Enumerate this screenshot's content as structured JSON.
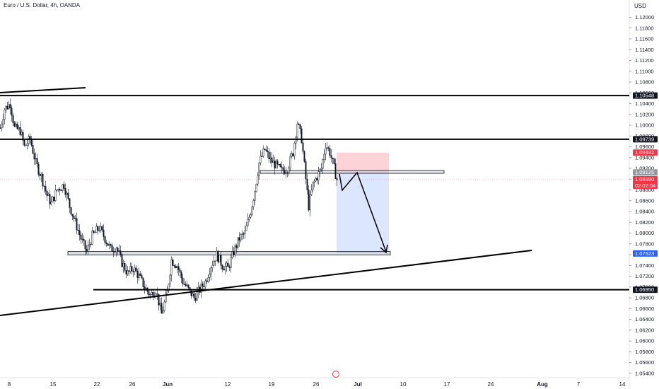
{
  "header": {
    "title": "Euro / U.S. Dollar, 4h, OANDA",
    "currency": "USD"
  },
  "chart_data": {
    "type": "candlestick",
    "symbol": "Euro / U.S. Dollar",
    "interval": "4h",
    "source": "OANDA",
    "y_axis": {
      "ylim": [
        1.0532,
        1.1232
      ],
      "ticks": [
        "1.12000",
        "1.11800",
        "1.11600",
        "1.11400",
        "1.11200",
        "1.11000",
        "1.10800",
        "1.10600",
        "1.10400",
        "1.10200",
        "1.10000",
        "1.09800",
        "1.09600",
        "1.09400",
        "1.09200",
        "1.09000",
        "1.08800",
        "1.08600",
        "1.08400",
        "1.08200",
        "1.08000",
        "1.07800",
        "1.07600",
        "1.07400",
        "1.07200",
        "1.07000",
        "1.06800",
        "1.06600",
        "1.06400",
        "1.06200",
        "1.06000",
        "1.05800",
        "1.05600",
        "1.05400"
      ]
    },
    "x_axis": {
      "ticks": [
        "8",
        "15",
        "22",
        "26",
        "Jun",
        "12",
        "19",
        "26",
        "Jul",
        "10",
        "17",
        "24",
        "Aug",
        "7",
        "14"
      ],
      "bold": [
        "Jun",
        "Jul",
        "Aug"
      ]
    },
    "price_badges": [
      {
        "value": "1.10548",
        "price": 1.10548,
        "bg": "#131722",
        "fg": "#ffffff"
      },
      {
        "value": "1.09739",
        "price": 1.09739,
        "bg": "#131722",
        "fg": "#ffffff"
      },
      {
        "value": "1.09492",
        "price": 1.09492,
        "bg": "#f23645",
        "fg": "#ffffff"
      },
      {
        "value": "1.09125",
        "price": 1.09125,
        "bg": "#9598a1",
        "fg": "#ffffff"
      },
      {
        "value": "1.08990",
        "price": 1.0899,
        "bg": "#f23645",
        "fg": "#ffffff",
        "sub": "02:02:04"
      },
      {
        "value": "1.07623",
        "price": 1.07623,
        "bg": "#2962ff",
        "fg": "#ffffff"
      },
      {
        "value": "1.06950",
        "price": 1.0695,
        "bg": "#131722",
        "fg": "#ffffff"
      }
    ],
    "horizontal_levels": [
      1.10548,
      1.09739,
      1.0695
    ],
    "zones": [
      {
        "name": "resistance-zone",
        "price_top": 1.0915,
        "price_bottom": 1.091
      },
      {
        "name": "support-zone",
        "price_top": 1.0765,
        "price_bottom": 1.0759
      }
    ],
    "position": {
      "type": "short",
      "stop": 1.09492,
      "entry": 1.09125,
      "target": 1.07623
    },
    "candles_keypoints": [
      {
        "x": 0,
        "price": 1.0995
      },
      {
        "x": 6,
        "price": 1.103
      },
      {
        "x": 14,
        "price": 1.104
      },
      {
        "x": 20,
        "price": 1.0995
      },
      {
        "x": 28,
        "price": 1.099
      },
      {
        "x": 34,
        "price": 1.096
      },
      {
        "x": 42,
        "price": 1.0975
      },
      {
        "x": 50,
        "price": 1.093
      },
      {
        "x": 58,
        "price": 1.0905
      },
      {
        "x": 66,
        "price": 1.087
      },
      {
        "x": 72,
        "price": 1.0855
      },
      {
        "x": 80,
        "price": 1.088
      },
      {
        "x": 90,
        "price": 1.089
      },
      {
        "x": 98,
        "price": 1.085
      },
      {
        "x": 106,
        "price": 1.082
      },
      {
        "x": 114,
        "price": 1.079
      },
      {
        "x": 122,
        "price": 1.0765
      },
      {
        "x": 130,
        "price": 1.0795
      },
      {
        "x": 140,
        "price": 1.081
      },
      {
        "x": 148,
        "price": 1.079
      },
      {
        "x": 156,
        "price": 1.077
      },
      {
        "x": 164,
        "price": 1.0775
      },
      {
        "x": 172,
        "price": 1.0745
      },
      {
        "x": 180,
        "price": 1.0725
      },
      {
        "x": 188,
        "price": 1.0735
      },
      {
        "x": 196,
        "price": 1.072
      },
      {
        "x": 204,
        "price": 1.07
      },
      {
        "x": 212,
        "price": 1.0685
      },
      {
        "x": 220,
        "price": 1.0695
      },
      {
        "x": 228,
        "price": 1.065
      },
      {
        "x": 236,
        "price": 1.069
      },
      {
        "x": 242,
        "price": 1.075
      },
      {
        "x": 250,
        "price": 1.074
      },
      {
        "x": 258,
        "price": 1.071
      },
      {
        "x": 266,
        "price": 1.0695
      },
      {
        "x": 274,
        "price": 1.068
      },
      {
        "x": 282,
        "price": 1.0695
      },
      {
        "x": 290,
        "price": 1.071
      },
      {
        "x": 298,
        "price": 1.074
      },
      {
        "x": 306,
        "price": 1.076
      },
      {
        "x": 314,
        "price": 1.074
      },
      {
        "x": 322,
        "price": 1.0735
      },
      {
        "x": 330,
        "price": 1.0765
      },
      {
        "x": 338,
        "price": 1.079
      },
      {
        "x": 346,
        "price": 1.08
      },
      {
        "x": 354,
        "price": 1.084
      },
      {
        "x": 360,
        "price": 1.088
      },
      {
        "x": 366,
        "price": 1.093
      },
      {
        "x": 374,
        "price": 1.0955
      },
      {
        "x": 382,
        "price": 1.0935
      },
      {
        "x": 390,
        "price": 1.0925
      },
      {
        "x": 398,
        "price": 1.0915
      },
      {
        "x": 406,
        "price": 1.092
      },
      {
        "x": 414,
        "price": 1.095
      },
      {
        "x": 420,
        "price": 1.1005
      },
      {
        "x": 426,
        "price": 1.0975
      },
      {
        "x": 432,
        "price": 1.09
      },
      {
        "x": 436,
        "price": 1.085
      },
      {
        "x": 442,
        "price": 1.089
      },
      {
        "x": 448,
        "price": 1.0905
      },
      {
        "x": 454,
        "price": 1.092
      },
      {
        "x": 460,
        "price": 1.0965
      },
      {
        "x": 466,
        "price": 1.095
      },
      {
        "x": 472,
        "price": 1.092
      },
      {
        "x": 476,
        "price": 1.0899
      }
    ]
  }
}
